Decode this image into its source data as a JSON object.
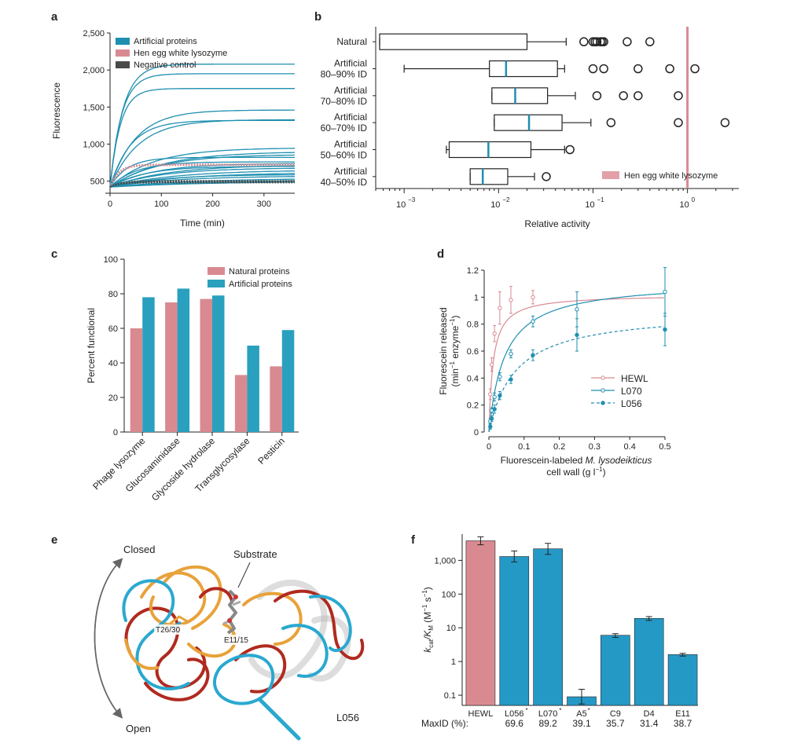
{
  "panels": {
    "a": "a",
    "b": "b",
    "c": "c",
    "d": "d",
    "e": "e",
    "f": "f"
  },
  "colors": {
    "artificial": "#1f8fb0",
    "hewl": "#d98a91",
    "negative": "#4a4a4a",
    "bar_natural": "#d98a91",
    "bar_artificial": "#2aa0bf",
    "bar_f_hewl": "#d98a91",
    "bar_f_art": "#2499c6",
    "l056_orange": "#e8a23a",
    "l056_blue": "#2aa8d0",
    "l056_red": "#b02a1f"
  },
  "chart_data": [
    {
      "id": "a",
      "type": "line",
      "xlabel": "Time (min)",
      "ylabel": "Fluorescence",
      "xlim": [
        0,
        360
      ],
      "ylim": [
        400,
        2500
      ],
      "xticks": [
        0,
        100,
        200,
        300
      ],
      "yticks": [
        500,
        1000,
        1500,
        2000,
        2500
      ],
      "ytick_labels": [
        "500",
        "1,000",
        "1,500",
        "2,000",
        "2,500"
      ],
      "legend": [
        "Artificial proteins",
        "Hen egg white lysozyme",
        "Negative control"
      ],
      "artificial_plateaus": [
        2080,
        1950,
        1750,
        1460,
        1330,
        1320,
        950,
        900,
        860,
        820,
        760,
        740,
        720,
        700,
        680,
        650,
        620,
        590,
        570,
        540,
        520,
        500
      ],
      "artificial_rates": [
        0.04,
        0.045,
        0.05,
        0.02,
        0.018,
        0.025,
        0.012,
        0.01,
        0.011,
        0.03,
        0.02,
        0.012,
        0.009,
        0.015,
        0.01,
        0.008,
        0.007,
        0.01,
        0.008,
        0.006,
        0.005,
        0.005
      ],
      "hewl_plateau": 720,
      "negative_level": 480
    },
    {
      "id": "b",
      "type": "box",
      "xlabel": "Relative activity",
      "xscale": "log",
      "xlim": [
        0.0005,
        3.5
      ],
      "xticks": [
        0.001,
        0.01,
        0.1,
        1
      ],
      "xtick_labels": [
        "10",
        "10",
        "10",
        "10"
      ],
      "xtick_exponents": [
        "−3",
        "−2",
        "−1",
        "0"
      ],
      "reference_line": 1.0,
      "reference_label": "Hen egg white lysozyme",
      "groups": [
        {
          "label1": "Natural",
          "label2": "",
          "min": 0.00055,
          "q1": 0.00055,
          "median": 0.00055,
          "q3": 0.02,
          "max": 0.052,
          "median_colored": false,
          "outliers": [
            0.08,
            0.1,
            0.105,
            0.11,
            0.12,
            0.125,
            0.13,
            0.23,
            0.4
          ]
        },
        {
          "label1": "Artificial",
          "label2": "80–90% ID",
          "min": 0.001,
          "q1": 0.008,
          "median": 0.012,
          "q3": 0.042,
          "max": 0.05,
          "median_colored": true,
          "outliers": [
            0.1,
            0.13,
            0.3,
            0.65,
            1.2
          ]
        },
        {
          "label1": "Artificial",
          "label2": "70–80% ID",
          "min": 0.0085,
          "q1": 0.0085,
          "median": 0.015,
          "q3": 0.033,
          "max": 0.065,
          "median_colored": true,
          "outliers": [
            0.11,
            0.21,
            0.3,
            0.8
          ]
        },
        {
          "label1": "Artificial",
          "label2": "60–70% ID",
          "min": 0.009,
          "q1": 0.009,
          "median": 0.021,
          "q3": 0.047,
          "max": 0.095,
          "median_colored": true,
          "outliers": [
            0.155,
            0.8,
            2.5
          ]
        },
        {
          "label1": "Artificial",
          "label2": "50–60% ID",
          "min": 0.0028,
          "q1": 0.003,
          "median": 0.0078,
          "q3": 0.022,
          "max": 0.05,
          "median_colored": true,
          "outliers": [
            0.057
          ]
        },
        {
          "label1": "Artificial",
          "label2": "40–50% ID",
          "min": 0.005,
          "q1": 0.005,
          "median": 0.0068,
          "q3": 0.0125,
          "max": 0.024,
          "median_colored": true,
          "outliers": [
            0.032
          ]
        }
      ]
    },
    {
      "id": "c",
      "type": "bar",
      "ylabel": "Percent functional",
      "ylim": [
        0,
        100
      ],
      "yticks": [
        0,
        20,
        40,
        60,
        80,
        100
      ],
      "categories": [
        "Phage lysozyme",
        "Glucosaminidase",
        "Glycoside hydrolase",
        "Transglycosylase",
        "Pesticin"
      ],
      "series": [
        {
          "name": "Natural proteins",
          "values": [
            60,
            75,
            77,
            33,
            38
          ]
        },
        {
          "name": "Artificial proteins",
          "values": [
            78,
            83,
            79,
            50,
            59
          ]
        }
      ]
    },
    {
      "id": "d",
      "type": "scatter",
      "xlabel_1": "Fluorescein-labeled ",
      "xlabel_italic": "M. lysodeikticus",
      "xlabel_2": "cell wall (g l",
      "xlabel_sup": "−1",
      "xlabel_3": ")",
      "ylabel_1": "Fluorescein released",
      "ylabel_2": "(min",
      "ylabel_sup1": "−1",
      "ylabel_3": " enzyme",
      "ylabel_sup2": "−1",
      "ylabel_4": ")",
      "xlim": [
        0,
        0.5
      ],
      "ylim": [
        0,
        1.2
      ],
      "xticks": [
        0,
        0.1,
        0.2,
        0.3,
        0.4,
        0.5
      ],
      "yticks": [
        0,
        0.2,
        0.4,
        0.6,
        0.8,
        1.0,
        1.2
      ],
      "series": [
        {
          "name": "HEWL",
          "vmax": 1.02,
          "km": 0.012,
          "dashed": false,
          "x": [
            0.004,
            0.008,
            0.016,
            0.031,
            0.0625,
            0.125
          ],
          "y": [
            0.28,
            0.5,
            0.73,
            0.92,
            0.98,
            1.0
          ],
          "err": [
            0.04,
            0.05,
            0.06,
            0.12,
            0.1,
            0.05
          ]
        },
        {
          "name": "L070",
          "vmax": 1.12,
          "km": 0.045,
          "dashed": false,
          "x": [
            0.004,
            0.008,
            0.016,
            0.031,
            0.0625,
            0.125,
            0.25,
            0.5
          ],
          "y": [
            0.08,
            0.16,
            0.26,
            0.41,
            0.58,
            0.82,
            0.91,
            1.04
          ],
          "err": [
            0.02,
            0.02,
            0.03,
            0.03,
            0.03,
            0.04,
            0.13,
            0.18
          ]
        },
        {
          "name": "L056",
          "vmax": 0.9,
          "km": 0.075,
          "dashed": true,
          "x": [
            0.004,
            0.008,
            0.016,
            0.031,
            0.0625,
            0.125,
            0.25,
            0.5
          ],
          "y": [
            0.04,
            0.1,
            0.17,
            0.27,
            0.39,
            0.57,
            0.72,
            0.76
          ],
          "err": [
            0.02,
            0.02,
            0.03,
            0.03,
            0.03,
            0.04,
            0.12,
            0.12
          ]
        }
      ]
    },
    {
      "id": "f",
      "type": "bar",
      "yscale": "log",
      "ylabel": "k_cat/K_M (M^-1 s^-1)",
      "ylim": [
        0.05,
        6000
      ],
      "yticks": [
        0.1,
        1,
        10,
        100,
        1000
      ],
      "ytick_labels": [
        "0.1",
        "1",
        "10",
        "100",
        "1,000"
      ],
      "categories": [
        "HEWL",
        "L056",
        "L070",
        "A5",
        "C9",
        "D4",
        "E11"
      ],
      "asterisk": [
        false,
        true,
        true,
        true,
        false,
        false,
        false
      ],
      "values": [
        3800,
        1300,
        2200,
        0.09,
        6,
        19,
        1.6
      ],
      "err_low": [
        2900,
        900,
        1500,
        0.055,
        5.2,
        16.5,
        1.45
      ],
      "err_high": [
        5000,
        1900,
        3200,
        0.15,
        6.7,
        21.5,
        1.75
      ],
      "maxid_label": "MaxID (%):",
      "maxid": [
        "69.6",
        "89.2",
        "39.1",
        "35.7",
        "31.4",
        "38.7"
      ]
    }
  ],
  "panel_e": {
    "closed": "Closed",
    "open": "Open",
    "substrate": "Substrate",
    "res1": "T26/30",
    "res2": "E11/15",
    "name": "L056"
  },
  "panel_f_labels": {
    "ylabel_k": "k",
    "ylabel_cat": "cat",
    "ylabel_slash": "/K",
    "ylabel_m": "M",
    "ylabel_units": " (M",
    "ylabel_sup": "−1",
    "ylabel_s": " s",
    "ylabel_sup2": "−1",
    "ylabel_close": ")",
    "star": "*"
  }
}
